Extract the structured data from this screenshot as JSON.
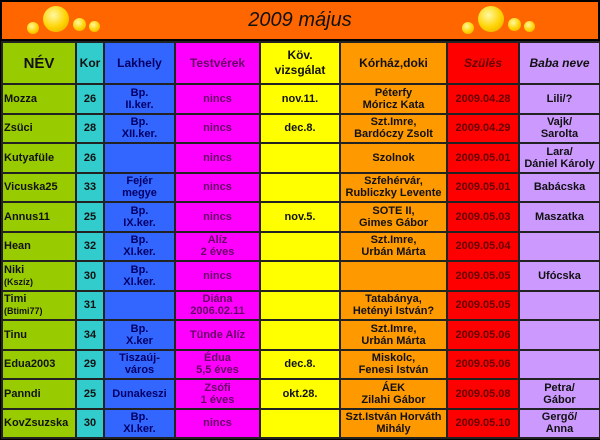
{
  "title": "2009 május",
  "headers": [
    "NÉV",
    "Kor",
    "Lakhely",
    "Testvérek",
    "Köv.\nvizsgálat",
    "Kórház,doki",
    "Szülés",
    "Baba neve"
  ],
  "colors": {
    "title": "#ff6600",
    "name": "#99cc00",
    "age": "#33cccc",
    "location": "#3366ff",
    "siblings": "#ff00ff",
    "exam": "#ffff00",
    "hospital": "#ff9900",
    "birth": "#ff0000",
    "baby": "#cc99ff"
  },
  "rows": [
    {
      "name": "Mozza",
      "name_sub": "",
      "age": "26",
      "location": "Bp.\nII.ker.",
      "siblings": "nincs",
      "exam": "nov.11.",
      "hospital": "Péterfy\nMóricz Kata",
      "birth": "2009.04.28",
      "baby": "Lili/?"
    },
    {
      "name": "Zsüci",
      "name_sub": "",
      "age": "28",
      "location": "Bp.\nXII.ker.",
      "siblings": "nincs",
      "exam": "dec.8.",
      "hospital": "Szt.Imre,\nBardóczy Zsolt",
      "birth": "2009.04.29",
      "baby": "Vajk/\nSarolta"
    },
    {
      "name": "Kutyafüle",
      "name_sub": "",
      "age": "26",
      "location": "",
      "siblings": "nincs",
      "exam": "",
      "hospital": "Szolnok",
      "birth": "2009.05.01",
      "baby": "Lara/\nDániel Károly"
    },
    {
      "name": "Vicuska25",
      "name_sub": "",
      "age": "33",
      "location": "Fejér\nmegye",
      "siblings": "nincs",
      "exam": "",
      "hospital": "Szfehérvár,\nRubliczky Levente",
      "birth": "2009.05.01",
      "baby": "Babácska"
    },
    {
      "name": "Annus11",
      "name_sub": "",
      "age": "25",
      "location": "Bp.\nIX.ker.",
      "siblings": "nincs",
      "exam": "nov.5.",
      "hospital": "SOTE II,\nGimes Gábor",
      "birth": "2009.05.03",
      "baby": "Maszatka"
    },
    {
      "name": "Hean",
      "name_sub": "",
      "age": "32",
      "location": "Bp.\nXI.ker.",
      "siblings": "Alíz\n2 éves",
      "exam": "",
      "hospital": "Szt.Imre,\nUrbán Márta",
      "birth": "2009.05.04",
      "baby": ""
    },
    {
      "name": "Niki",
      "name_sub": "(Kszíz)",
      "age": "30",
      "location": "Bp.\nXI.ker.",
      "siblings": "nincs",
      "exam": "",
      "hospital": "",
      "birth": "2009.05.05",
      "baby": "Ufócska"
    },
    {
      "name": "Timi",
      "name_sub": "(Btimi77)",
      "age": "31",
      "location": "",
      "siblings": "Diána\n2006.02.11",
      "exam": "",
      "hospital": "Tatabánya,\nHetényi István?",
      "birth": "2009.05.05",
      "baby": ""
    },
    {
      "name": "Tinu",
      "name_sub": "",
      "age": "34",
      "location": "Bp.\nX.ker",
      "siblings": "Tünde Alíz",
      "exam": "",
      "hospital": "Szt.Imre,\nUrbán Márta",
      "birth": "2009.05.06",
      "baby": ""
    },
    {
      "name": "Edua2003",
      "name_sub": "",
      "age": "29",
      "location": "Tiszaúj-\nváros",
      "siblings": "Édua\n5,5 éves",
      "exam": "dec.8.",
      "hospital": "Miskolc,\nFenesi István",
      "birth": "2009.05.06",
      "baby": ""
    },
    {
      "name": "Panndi",
      "name_sub": "",
      "age": "25",
      "location": "Dunakeszi",
      "siblings": "Zsófi\n1 éves",
      "exam": "okt.28.",
      "hospital": "ÁEK\nZilahi Gábor",
      "birth": "2009.05.08",
      "baby": "Petra/\nGábor"
    },
    {
      "name": "KovZsuzska",
      "name_sub": "",
      "age": "30",
      "location": "Bp.\nXI.ker.",
      "siblings": "nincs",
      "exam": "",
      "hospital": "Szt.István Horváth\nMihály",
      "birth": "2009.05.10",
      "baby": "Gergő/\nAnna"
    }
  ]
}
